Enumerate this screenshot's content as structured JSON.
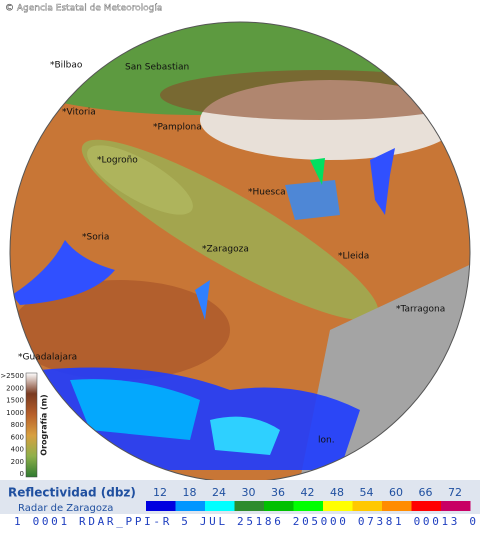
{
  "header": {
    "credit": "© Agencia Estatal de Meteorología"
  },
  "cities": [
    {
      "label": "*Bilbao"
    },
    {
      "label": "San Sebastian"
    },
    {
      "label": "*Vitoria"
    },
    {
      "label": "*Pamplona"
    },
    {
      "label": "*Logroño"
    },
    {
      "label": "*Huesca"
    },
    {
      "label": "*Soria"
    },
    {
      "label": "*Zaragoza"
    },
    {
      "label": "*Lleida"
    },
    {
      "label": "*Tarragona"
    },
    {
      "label": "*Guadalajara"
    },
    {
      "label": "lon."
    }
  ],
  "orography": {
    "title": "Orografía (m)",
    "labels": [
      ">2500",
      "2000",
      "1500",
      "1000",
      "800",
      "600",
      "400",
      "200",
      "0"
    ]
  },
  "logo": "aemet",
  "legend": {
    "title": "Reflectividad (dbz)",
    "subtitle": "Radar de Zaragoza",
    "levels": [
      {
        "value": 12,
        "color": "#0000e0"
      },
      {
        "value": 18,
        "color": "#0096ff"
      },
      {
        "value": 24,
        "color": "#00ffff"
      },
      {
        "value": 30,
        "color": "#2e8b2e"
      },
      {
        "value": 36,
        "color": "#00c000"
      },
      {
        "value": 42,
        "color": "#00ff00"
      },
      {
        "value": 48,
        "color": "#ffff00"
      },
      {
        "value": 54,
        "color": "#ffc800"
      },
      {
        "value": 60,
        "color": "#ff8c00"
      },
      {
        "value": 66,
        "color": "#ff0000"
      },
      {
        "value": 72,
        "color": "#c80064"
      }
    ]
  },
  "status": "1 0001 RDAR_PPI-R   5 JUL 25186 205000 07381 00013 0"
}
